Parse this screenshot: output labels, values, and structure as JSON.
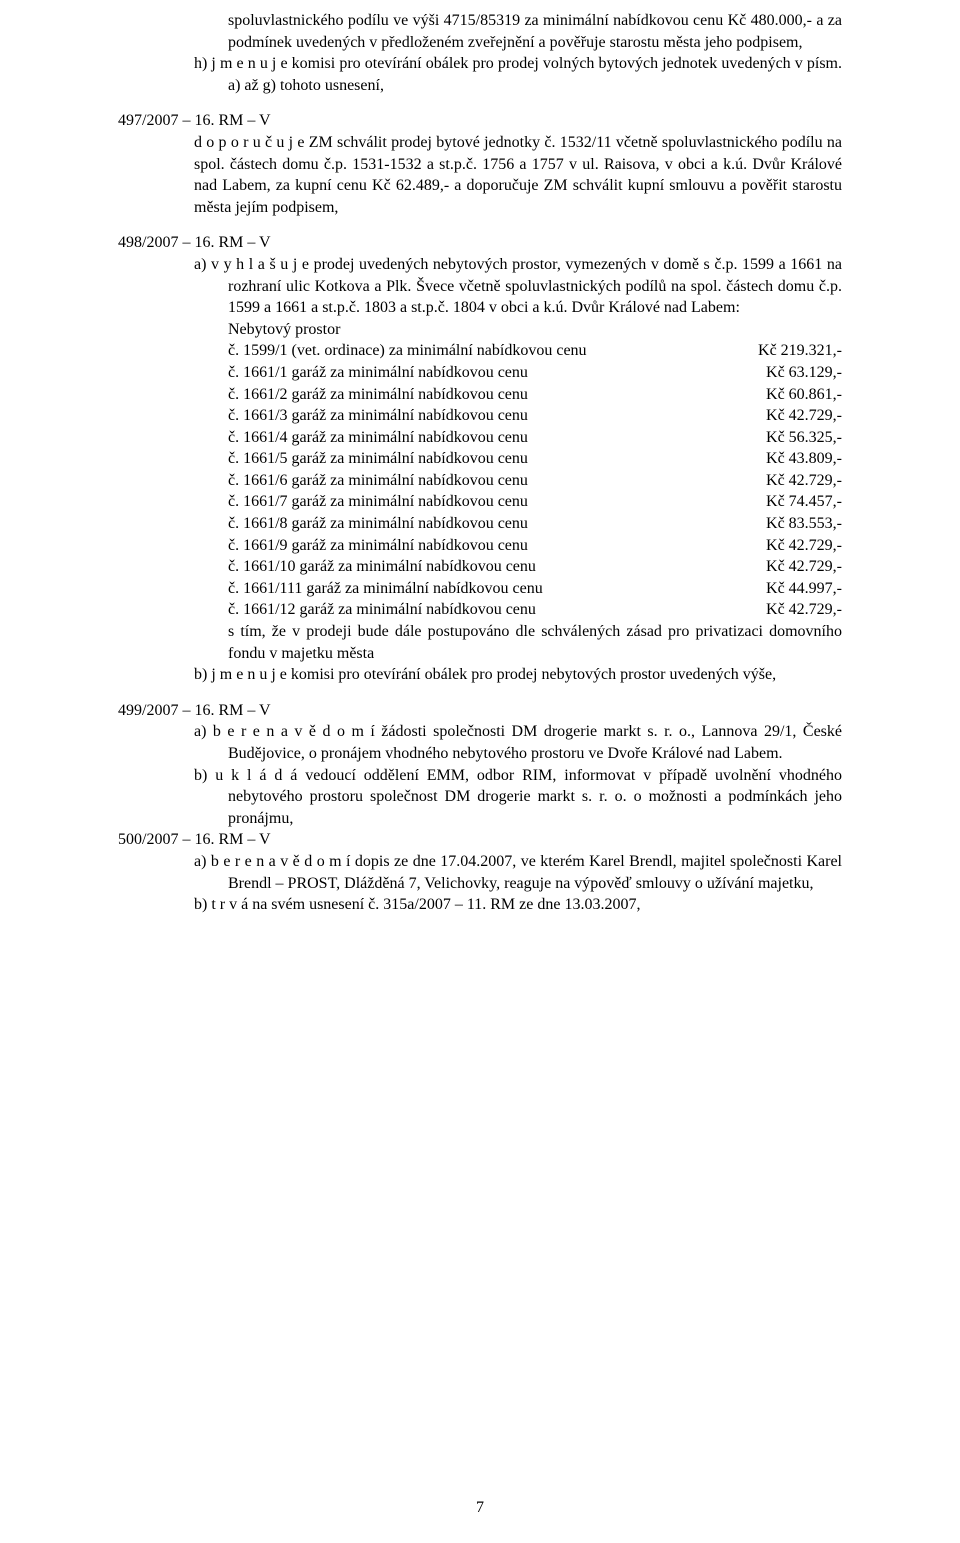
{
  "intro": {
    "line1": "spoluvlastnického podílu ve výši 4715/85319 za minimální nabídkovou cenu Kč 480.000,- a za podmínek uvedených v předloženém  zveřejnění  a pověřuje starostu města jeho  podpisem,",
    "item_h": "h)  j m e n u j e  komisi pro otevírání obálek pro prodej volných bytových jednotek uvedených v písm. a) až g) tohoto usnesení,"
  },
  "sec497": {
    "heading": "497/2007 – 16. RM – V",
    "body": "d o p o r u č u j e   ZM  schválit  prodej  bytové  jednotky  č.  1532/11  včetně spoluvlastnického podílu  na spol. částech domu  č.p. 1531-1532 a st.p.č. 1756 a 1757 v ul. Raisova, v obci a k.ú. Dvůr Králové nad Labem, za  kupní cenu Kč 62.489,-  a doporučuje ZM schválit kupní smlouvu a pověřit starostu města jejím podpisem,"
  },
  "sec498": {
    "heading": "498/2007 – 16. RM – V",
    "item_a_intro": "a)  v y h l a š u j e    prodej  uvedených    nebytových  prostor,  vymezených v domě s č.p. 1599 a 1661 na rozhraní ulic Kotkova a Plk. Švece včetně spoluvlastnických  podílů  na spol. částech domu č.p. 1599 a 1661  a st.p.č. 1803 a st.p.č. 1804  v obci a k.ú. Dvůr Králové nad Labem:",
    "nebyt_label": "Nebytový prostor",
    "prices": [
      {
        "label": "č. 1599/1  (vet. ordinace) za  minimální nabídkovou cenu",
        "value": "Kč 219.321,-"
      },
      {
        "label": "č. 1661/1  garáž za minimální nabídkovou cenu",
        "value": "Kč  63.129,-"
      },
      {
        "label": "č. 1661/2  garáž za minimální nabídkovou cenu",
        "value": "Kč  60.861,-"
      },
      {
        "label": "č. 1661/3  garáž za minimální nabídkovou cenu",
        "value": "Kč  42.729,-"
      },
      {
        "label": "č. 1661/4  garáž za minimální nabídkovou cenu",
        "value": "Kč  56.325,-"
      },
      {
        "label": "č. 1661/5  garáž za minimální nabídkovou cenu",
        "value": "Kč  43.809,-"
      },
      {
        "label": "č. 1661/6  garáž za minimální nabídkovou cenu",
        "value": "Kč  42.729,-"
      },
      {
        "label": "č. 1661/7  garáž za minimální nabídkovou cenu",
        "value": "Kč  74.457,-"
      },
      {
        "label": "č. 1661/8  garáž za minimální nabídkovou cenu",
        "value": "Kč  83.553,-"
      },
      {
        "label": "č. 1661/9  garáž za minimální nabídkovou cenu",
        "value": "Kč  42.729,-"
      },
      {
        "label": "č. 1661/10 garáž za minimální nabídkovou cenu",
        "value": "Kč  42.729,-"
      },
      {
        "label": "č. 1661/111 garáž za minimální nabídkovou cenu",
        "value": "Kč  44.997,-"
      },
      {
        "label": "č. 1661/12  garáž za minimální nabídkovou cenu",
        "value": "Kč  42.729,-"
      }
    ],
    "item_a_tail": "s tím,  že  v prodeji  bude  dále  postupováno  dle  schválených  zásad  pro privatizaci domovního fondu v majetku města",
    "item_b": "b)  j m e n u j e  komisi pro otevírání obálek pro prodej nebytových prostor uvedených výše,"
  },
  "sec499": {
    "heading": "499/2007 – 16. RM – V",
    "item_a": "a)  b e r e   n a   v ě d o m í  žádosti společnosti DM drogerie markt s. r. o., Lannova  29/1,  České  Budějovice,  o  pronájem  vhodného  nebytového prostoru ve Dvoře Králové nad Labem.",
    "item_b": "b)  u k l á d á   vedoucí  oddělení  EMM,  odbor  RIM,  informovat  v případě uvolnění vhodného nebytového prostoru společnost DM drogerie markt s. r. o. o možnosti a podmínkách jeho pronájmu,"
  },
  "sec500": {
    "heading": "500/2007 – 16. RM – V",
    "item_a": "a)  b e r e   n a   v ě d o m í  dopis ze dne 17.04.2007, ve kterém Karel Brendl, majitel  společnosti  Karel  Brendl  –  PROST,  Dlážděná  7,  Velichovky, reaguje na výpověď smlouvy o užívání majetku,",
    "item_b": "b)  t r v á  na svém usnesení č. 315a/2007 – 11. RM ze dne 13.03.2007,"
  },
  "page_number": "7"
}
